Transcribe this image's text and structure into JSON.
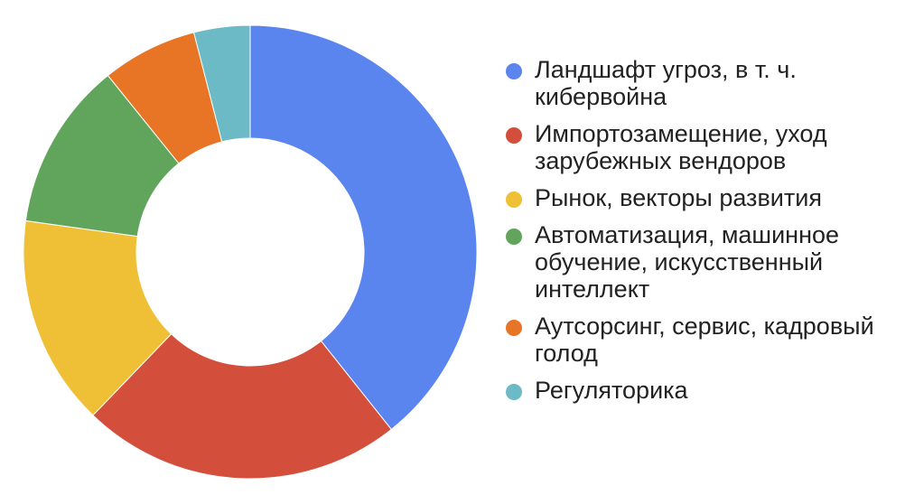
{
  "chart_data": {
    "type": "pie",
    "donut": true,
    "title": "",
    "legend_position": "right",
    "slices": [
      {
        "label": "Ландшафт угроз, в т. ч. кибервойна",
        "value": 39.3,
        "color": "#5b85ee"
      },
      {
        "label": "Импортозамещение, уход зарубежных вендоров",
        "value": 22.9,
        "color": "#d44e3c"
      },
      {
        "label": "Рынок, векторы развития",
        "value": 15.0,
        "color": "#efbf36"
      },
      {
        "label": "Автоматизация, машинное обучение, искусственный интеллект",
        "value": 12.0,
        "color": "#60a55b"
      },
      {
        "label": "Аутсорсинг, сервис, кадровый голод",
        "value": 6.8,
        "color": "#e87526"
      },
      {
        "label": "Регуляторика",
        "value": 4.0,
        "color": "#6bbac5"
      }
    ]
  }
}
